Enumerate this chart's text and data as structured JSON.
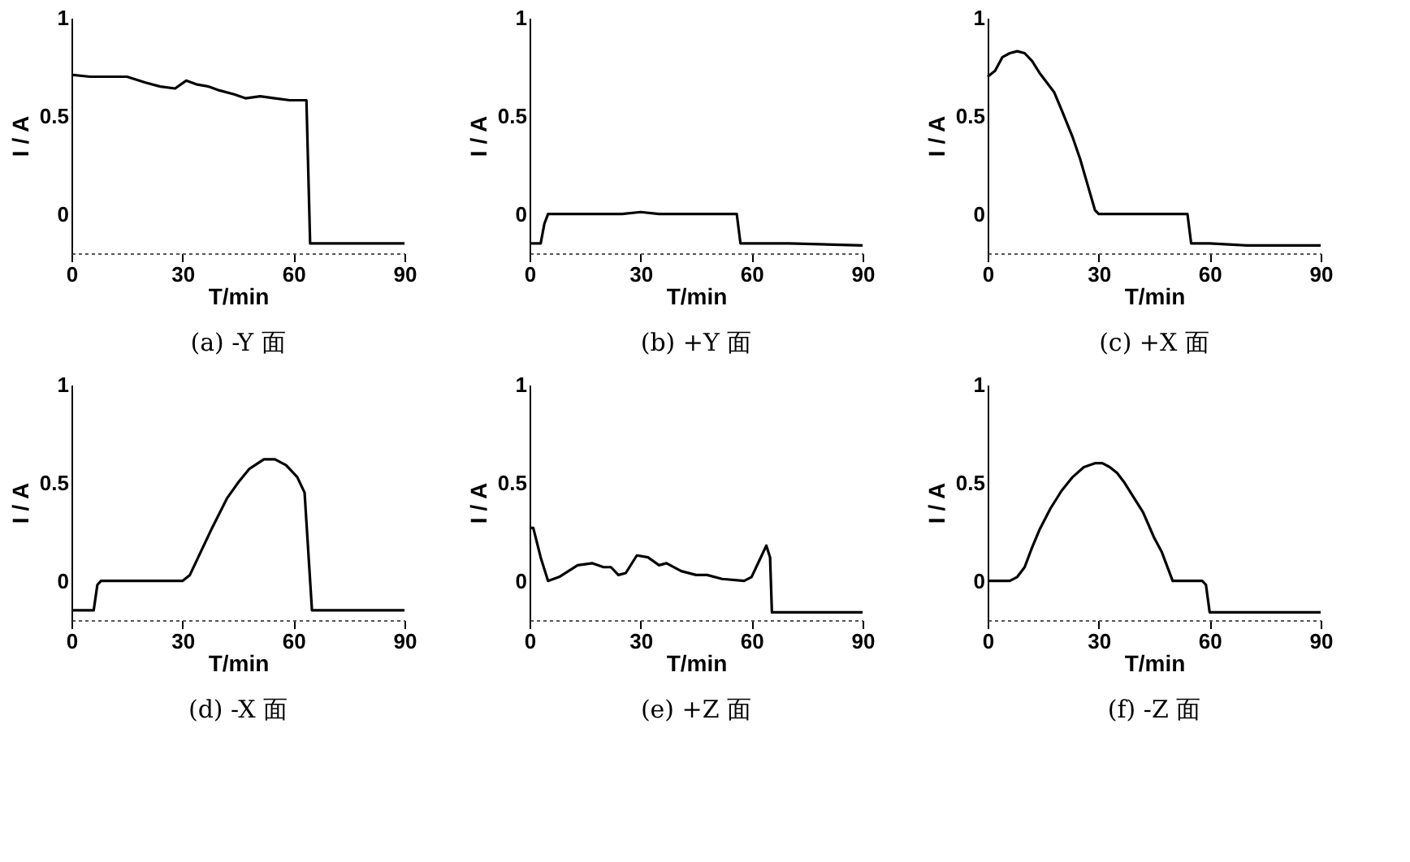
{
  "chart_data": [
    {
      "type": "line",
      "title": "(a) -Y 面",
      "xlabel": "T/min",
      "ylabel": "I / A",
      "xlim": [
        0,
        90
      ],
      "ylim": [
        -0.2,
        1
      ],
      "xticks": [
        0,
        30,
        60,
        90
      ],
      "yticks": [
        0,
        0.5,
        1
      ],
      "grid": false,
      "marker": "none",
      "line_style": "solid",
      "series": [
        {
          "color": "#000000",
          "x": [
            0,
            5,
            10,
            15,
            20,
            24,
            28,
            31,
            34,
            37,
            40,
            44,
            47,
            51,
            55,
            59,
            62,
            63.5,
            64.5,
            66,
            90
          ],
          "values": [
            0.71,
            0.7,
            0.7,
            0.7,
            0.67,
            0.65,
            0.64,
            0.68,
            0.66,
            0.65,
            0.63,
            0.61,
            0.59,
            0.6,
            0.59,
            0.58,
            0.58,
            0.58,
            -0.15,
            -0.15,
            -0.15
          ]
        }
      ]
    },
    {
      "type": "line",
      "title": "(b) +Y 面",
      "xlabel": "T/min",
      "ylabel": "I / A",
      "xlim": [
        0,
        90
      ],
      "ylim": [
        -0.2,
        1
      ],
      "xticks": [
        0,
        30,
        60,
        90
      ],
      "yticks": [
        0,
        0.5,
        1
      ],
      "grid": false,
      "marker": "none",
      "line_style": "solid",
      "series": [
        {
          "color": "#000000",
          "x": [
            0,
            3,
            4,
            5,
            15,
            25,
            30,
            35,
            45,
            55,
            56,
            57,
            70,
            90
          ],
          "values": [
            -0.15,
            -0.15,
            -0.05,
            0,
            0,
            0,
            0.01,
            0,
            0,
            0,
            0,
            -0.15,
            -0.15,
            -0.16
          ]
        }
      ]
    },
    {
      "type": "line",
      "title": "(c) +X 面",
      "xlabel": "T/min",
      "ylabel": "I / A",
      "xlim": [
        0,
        90
      ],
      "ylim": [
        -0.2,
        1
      ],
      "xticks": [
        0,
        30,
        60,
        90
      ],
      "yticks": [
        0,
        0.5,
        1
      ],
      "grid": false,
      "marker": "none",
      "line_style": "solid",
      "series": [
        {
          "color": "#000000",
          "x": [
            0,
            2,
            4,
            6,
            8,
            10,
            12,
            14,
            16,
            18,
            20,
            23,
            25,
            27,
            29,
            30,
            40,
            50,
            54,
            55,
            60,
            70,
            90
          ],
          "values": [
            0.7,
            0.73,
            0.8,
            0.82,
            0.83,
            0.82,
            0.78,
            0.72,
            0.67,
            0.62,
            0.53,
            0.39,
            0.28,
            0.15,
            0.02,
            0,
            0,
            0,
            0,
            -0.15,
            -0.15,
            -0.16,
            -0.16
          ]
        }
      ]
    },
    {
      "type": "line",
      "title": "(d) -X 面",
      "xlabel": "T/min",
      "ylabel": "I / A",
      "xlim": [
        0,
        90
      ],
      "ylim": [
        -0.2,
        1
      ],
      "xticks": [
        0,
        30,
        60,
        90
      ],
      "yticks": [
        0,
        0.5,
        1
      ],
      "grid": false,
      "marker": "none",
      "line_style": "solid",
      "series": [
        {
          "color": "#000000",
          "x": [
            0,
            6,
            7,
            8,
            20,
            30,
            32,
            35,
            38,
            42,
            45,
            48,
            52,
            55,
            58,
            61,
            63,
            63.5,
            65,
            75,
            90
          ],
          "values": [
            -0.15,
            -0.15,
            -0.02,
            0,
            0,
            0,
            0.03,
            0.15,
            0.27,
            0.42,
            0.5,
            0.57,
            0.62,
            0.62,
            0.59,
            0.53,
            0.45,
            0.3,
            -0.15,
            -0.15,
            -0.15
          ]
        }
      ]
    },
    {
      "type": "line",
      "title": "(e) +Z 面",
      "xlabel": "T/min",
      "ylabel": "I / A",
      "xlim": [
        0,
        90
      ],
      "ylim": [
        -0.2,
        1
      ],
      "xticks": [
        0,
        30,
        60,
        90
      ],
      "yticks": [
        0,
        0.5,
        1
      ],
      "grid": false,
      "marker": "none",
      "line_style": "solid",
      "series": [
        {
          "color": "#000000",
          "x": [
            0,
            1,
            3,
            5,
            8,
            13,
            17,
            20,
            22,
            24,
            26,
            29,
            32,
            35,
            37,
            41,
            45,
            48,
            52,
            58,
            60,
            62,
            64,
            65,
            65.5,
            75,
            90
          ],
          "values": [
            0.27,
            0.27,
            0.12,
            0,
            0.02,
            0.08,
            0.09,
            0.07,
            0.07,
            0.03,
            0.04,
            0.13,
            0.12,
            0.08,
            0.09,
            0.05,
            0.03,
            0.03,
            0.01,
            0,
            0.02,
            0.1,
            0.18,
            0.12,
            -0.16,
            -0.16,
            -0.16
          ]
        }
      ]
    },
    {
      "type": "line",
      "title": "(f) -Z 面",
      "xlabel": "T/min",
      "ylabel": "I / A",
      "xlim": [
        0,
        90
      ],
      "ylim": [
        -0.2,
        1
      ],
      "xticks": [
        0,
        30,
        60,
        90
      ],
      "yticks": [
        0,
        0.5,
        1
      ],
      "grid": false,
      "marker": "none",
      "line_style": "solid",
      "series": [
        {
          "color": "#000000",
          "x": [
            0,
            6,
            8,
            10,
            12,
            14,
            17,
            20,
            23,
            26,
            29,
            31,
            33,
            35,
            37,
            40,
            42,
            45,
            47,
            50,
            55,
            58,
            59,
            60,
            70,
            90
          ],
          "values": [
            0,
            0,
            0.02,
            0.07,
            0.17,
            0.26,
            0.37,
            0.46,
            0.53,
            0.58,
            0.6,
            0.6,
            0.58,
            0.55,
            0.5,
            0.41,
            0.35,
            0.22,
            0.15,
            0,
            0,
            0,
            -0.02,
            -0.16,
            -0.16,
            -0.16
          ]
        }
      ]
    }
  ]
}
